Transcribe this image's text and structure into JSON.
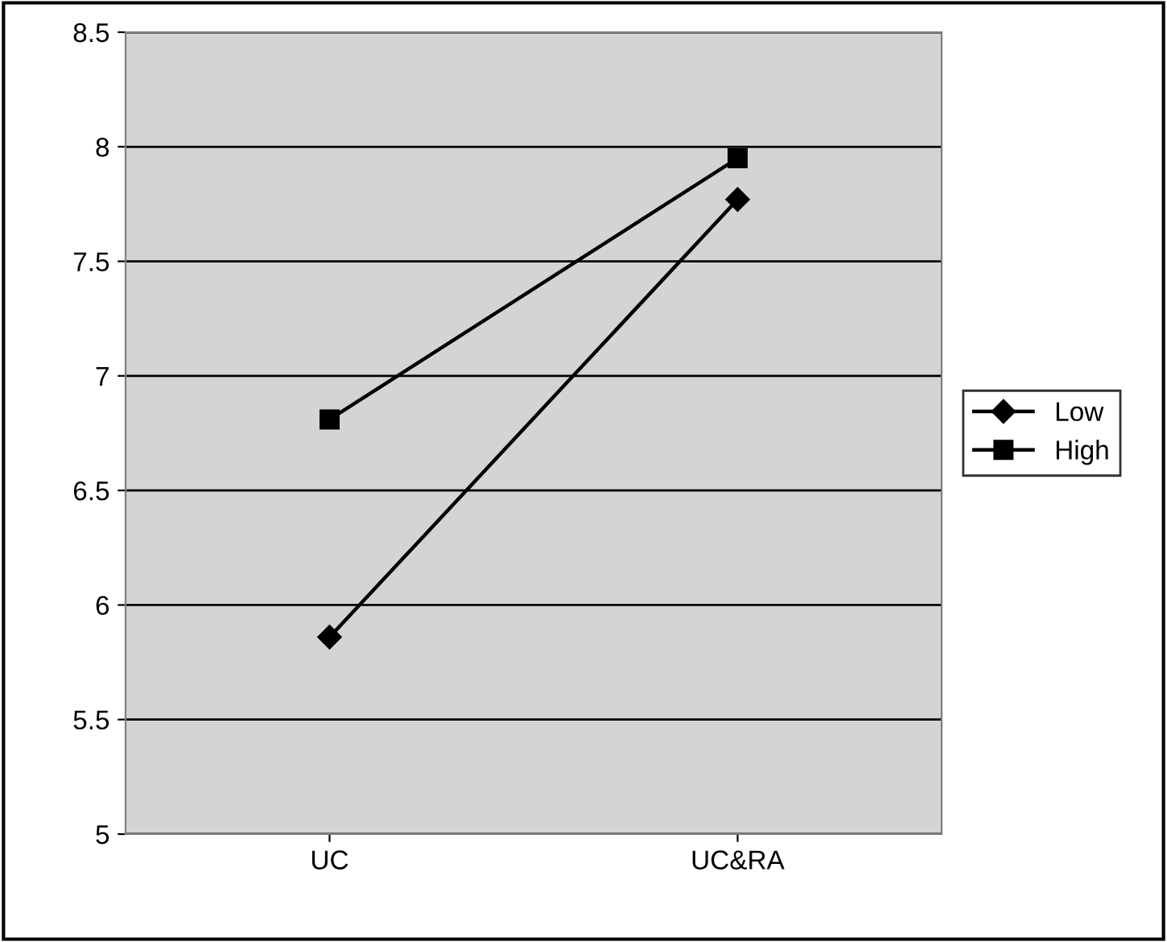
{
  "chart_data": {
    "type": "line",
    "categories": [
      "UC",
      "UC&RA"
    ],
    "series": [
      {
        "name": "Low",
        "color": "#000000",
        "values": [
          5.86,
          7.77
        ],
        "marker": "diamond"
      },
      {
        "name": "High",
        "color": "#000000",
        "values": [
          6.81,
          7.95
        ],
        "marker": "square"
      }
    ],
    "ylim": [
      5,
      8.5
    ],
    "yticks": [
      5,
      5.5,
      6,
      6.5,
      7,
      7.5,
      8,
      8.5
    ],
    "grid": "y",
    "legend": "right",
    "line_style": "solid"
  }
}
